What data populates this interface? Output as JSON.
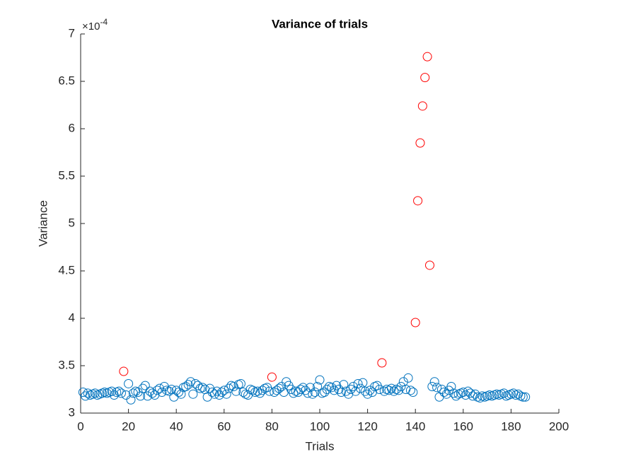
{
  "chart_data": {
    "type": "scatter",
    "title": "Variance of trials",
    "xlabel": "Trials",
    "ylabel": "Variance",
    "y_multiplier": "×10",
    "y_exponent": "-4",
    "xlim": [
      0,
      200
    ],
    "xticks": [
      0,
      20,
      40,
      60,
      80,
      100,
      120,
      140,
      160,
      180,
      200
    ],
    "ylim": [
      3,
      7
    ],
    "yticks": [
      3,
      3.5,
      4,
      4.5,
      5,
      5.5,
      6,
      6.5,
      7
    ],
    "series": [
      {
        "color": "#0072BD",
        "x": [
          1,
          2,
          3,
          4,
          5,
          6,
          7,
          8,
          9,
          10,
          11,
          12,
          13,
          14,
          15,
          16,
          17,
          19,
          20,
          21,
          22,
          23,
          24,
          25,
          26,
          27,
          28,
          29,
          30,
          31,
          32,
          33,
          34,
          35,
          36,
          37,
          38,
          39,
          40,
          41,
          42,
          43,
          44,
          45,
          46,
          47,
          48,
          49,
          50,
          51,
          52,
          53,
          54,
          55,
          56,
          57,
          58,
          59,
          60,
          61,
          62,
          63,
          64,
          65,
          66,
          67,
          68,
          69,
          70,
          71,
          72,
          73,
          74,
          75,
          76,
          77,
          78,
          79,
          81,
          82,
          83,
          84,
          85,
          86,
          87,
          88,
          89,
          90,
          91,
          92,
          93,
          94,
          95,
          96,
          97,
          98,
          99,
          100,
          101,
          102,
          103,
          104,
          105,
          106,
          107,
          108,
          109,
          110,
          111,
          112,
          113,
          114,
          115,
          116,
          117,
          118,
          119,
          120,
          121,
          122,
          123,
          124,
          125,
          127,
          128,
          129,
          130,
          131,
          132,
          133,
          134,
          135,
          136,
          137,
          138,
          139,
          147,
          148,
          149,
          150,
          151,
          152,
          153,
          154,
          155,
          156,
          157,
          158,
          159,
          160,
          161,
          162,
          163,
          164,
          165,
          166,
          167,
          168,
          169,
          170,
          171,
          172,
          173,
          174,
          175,
          176,
          177,
          178,
          179,
          180,
          181,
          182,
          183,
          184,
          185,
          186
        ],
        "values": [
          3.22,
          3.18,
          3.21,
          3.19,
          3.2,
          3.21,
          3.19,
          3.2,
          3.21,
          3.22,
          3.21,
          3.22,
          3.23,
          3.19,
          3.22,
          3.23,
          3.21,
          3.19,
          3.31,
          3.14,
          3.21,
          3.23,
          3.22,
          3.18,
          3.26,
          3.29,
          3.18,
          3.23,
          3.21,
          3.19,
          3.24,
          3.26,
          3.22,
          3.28,
          3.24,
          3.23,
          3.25,
          3.17,
          3.24,
          3.22,
          3.2,
          3.27,
          3.28,
          3.3,
          3.33,
          3.2,
          3.31,
          3.29,
          3.26,
          3.27,
          3.25,
          3.17,
          3.26,
          3.22,
          3.2,
          3.23,
          3.19,
          3.22,
          3.24,
          3.2,
          3.26,
          3.29,
          3.28,
          3.23,
          3.3,
          3.31,
          3.22,
          3.2,
          3.19,
          3.25,
          3.24,
          3.22,
          3.23,
          3.21,
          3.24,
          3.26,
          3.27,
          3.23,
          3.22,
          3.24,
          3.26,
          3.28,
          3.22,
          3.33,
          3.29,
          3.25,
          3.21,
          3.23,
          3.22,
          3.25,
          3.27,
          3.24,
          3.21,
          3.27,
          3.2,
          3.22,
          3.28,
          3.35,
          3.21,
          3.22,
          3.25,
          3.28,
          3.27,
          3.24,
          3.29,
          3.25,
          3.22,
          3.3,
          3.23,
          3.2,
          3.25,
          3.28,
          3.23,
          3.31,
          3.26,
          3.32,
          3.23,
          3.2,
          3.24,
          3.22,
          3.28,
          3.29,
          3.25,
          3.23,
          3.25,
          3.24,
          3.26,
          3.23,
          3.25,
          3.24,
          3.28,
          3.33,
          3.25,
          3.37,
          3.24,
          3.22,
          3.28,
          3.33,
          3.27,
          3.17,
          3.25,
          3.22,
          3.2,
          3.24,
          3.28,
          3.21,
          3.18,
          3.2,
          3.21,
          3.22,
          3.19,
          3.23,
          3.21,
          3.18,
          3.2,
          3.17,
          3.16,
          3.18,
          3.17,
          3.18,
          3.19,
          3.18,
          3.19,
          3.2,
          3.19,
          3.2,
          3.21,
          3.18,
          3.19,
          3.2,
          3.21,
          3.19,
          3.2,
          3.18,
          3.17,
          3.17
        ]
      },
      {
        "color": "#FF0000",
        "x": [
          18,
          80,
          126,
          140,
          141,
          142,
          143,
          144,
          145,
          146
        ],
        "values": [
          3.44,
          3.38,
          3.53,
          3.955,
          5.24,
          5.85,
          6.24,
          6.54,
          6.76,
          4.56
        ]
      }
    ]
  }
}
